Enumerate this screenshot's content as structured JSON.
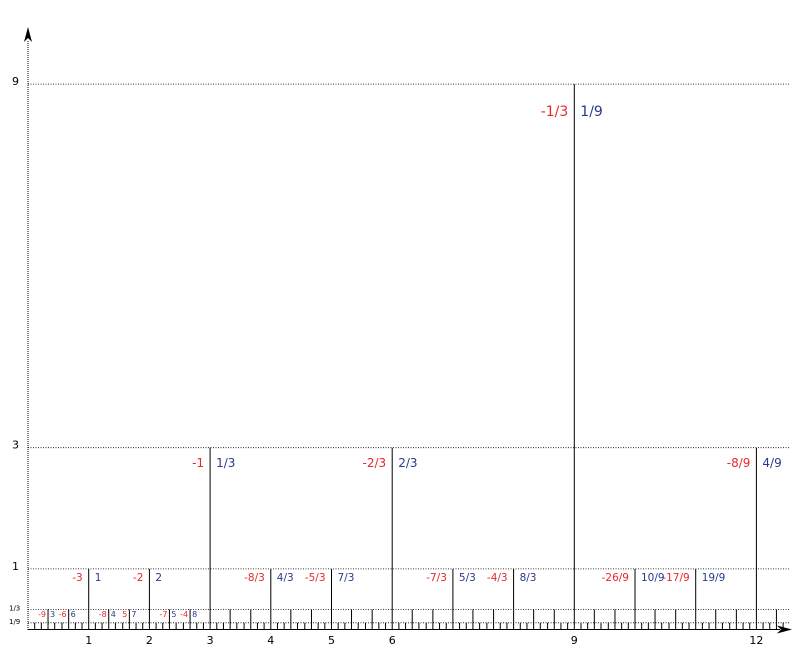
{
  "chart_data": {
    "type": "ruler",
    "x": [
      0.11,
      0.22,
      0.33,
      0.44,
      0.56,
      0.67,
      0.78,
      0.89,
      1,
      1.11,
      1.22,
      1.33,
      1.44,
      1.56,
      1.67,
      1.78,
      1.89,
      2,
      2.11,
      2.22,
      2.33,
      2.44,
      2.56,
      2.67,
      2.78,
      2.89,
      3,
      3.11,
      3.22,
      3.33,
      3.44,
      3.56,
      3.67,
      3.78,
      3.89,
      4,
      4.11,
      4.22,
      4.33,
      4.44,
      4.56,
      4.67,
      4.78,
      4.89,
      5,
      5.11,
      5.22,
      5.33,
      5.44,
      5.56,
      5.67,
      5.78,
      5.89,
      6,
      6.11,
      6.22,
      6.33,
      6.44,
      6.56,
      6.67,
      6.78,
      6.89,
      7,
      7.11,
      7.22,
      7.33,
      7.44,
      7.56,
      7.67,
      7.78,
      7.89,
      8,
      8.11,
      8.22,
      8.33,
      8.44,
      8.56,
      8.67,
      8.78,
      8.89,
      9,
      9.11,
      9.22,
      9.33,
      9.44,
      9.56,
      9.67,
      9.78,
      9.89,
      10,
      10.11,
      10.22,
      10.33,
      10.44,
      10.56,
      10.67,
      10.78,
      10.89,
      11,
      11.11,
      11.22,
      11.33,
      11.44,
      11.56,
      11.67,
      11.78,
      11.89,
      12,
      12.11,
      12.22,
      12.33,
      12.44
    ],
    "values": [
      0.11,
      0.11,
      0.33,
      0.11,
      0.11,
      0.33,
      0.11,
      0.11,
      1,
      0.11,
      0.11,
      0.33,
      0.11,
      0.11,
      0.33,
      0.11,
      0.11,
      1,
      0.11,
      0.11,
      0.33,
      0.11,
      0.11,
      0.33,
      0.11,
      0.11,
      3,
      0.11,
      0.11,
      0.33,
      0.11,
      0.11,
      0.33,
      0.11,
      0.11,
      1,
      0.11,
      0.11,
      0.33,
      0.11,
      0.11,
      0.33,
      0.11,
      0.11,
      1,
      0.11,
      0.11,
      0.33,
      0.11,
      0.11,
      0.33,
      0.11,
      0.11,
      3,
      0.11,
      0.11,
      0.33,
      0.11,
      0.11,
      0.33,
      0.11,
      0.11,
      1,
      0.11,
      0.11,
      0.33,
      0.11,
      0.11,
      0.33,
      0.11,
      0.11,
      1,
      0.11,
      0.11,
      0.33,
      0.11,
      0.11,
      0.33,
      0.11,
      0.11,
      9,
      0.11,
      0.11,
      0.33,
      0.11,
      0.11,
      0.33,
      0.11,
      0.11,
      1,
      0.11,
      0.11,
      0.33,
      0.11,
      0.11,
      0.33,
      0.11,
      0.11,
      1,
      0.11,
      0.11,
      0.33,
      0.11,
      0.11,
      0.33,
      0.11,
      0.11,
      3,
      0.11,
      0.11,
      0.33,
      0.11
    ],
    "color": "#000000",
    "labels": [
      {
        "x": 0.33,
        "left": "-9",
        "right": "3"
      },
      {
        "x": 0.67,
        "left": "-6",
        "right": "6"
      },
      {
        "x": 1.33,
        "left": "-8",
        "right": "4"
      },
      {
        "x": 1.67,
        "left": "5",
        "right": "7"
      },
      {
        "x": 2.33,
        "left": "-7",
        "right": "5"
      },
      {
        "x": 2.67,
        "left": "-4",
        "right": "8"
      },
      {
        "x": 1,
        "left": "-3",
        "right": "1"
      },
      {
        "x": 2,
        "left": "-2",
        "right": "2"
      },
      {
        "x": 3,
        "left": "-1",
        "right": "1/3"
      },
      {
        "x": 4,
        "left": "-8/3",
        "right": "4/3"
      },
      {
        "x": 5,
        "left": "-5/3",
        "right": "7/3"
      },
      {
        "x": 6,
        "left": "-2/3",
        "right": "2/3"
      },
      {
        "x": 7,
        "left": "-7/3",
        "right": "5/3"
      },
      {
        "x": 8,
        "left": "-4/3",
        "right": "8/3"
      },
      {
        "x": 9,
        "left": "-1/3",
        "right": "1/9"
      },
      {
        "x": 10,
        "left": "-26/9",
        "right": "10/9"
      },
      {
        "x": 11,
        "left": "-17/9",
        "right": "19/9"
      },
      {
        "x": 12,
        "left": "-8/9",
        "right": "4/9"
      }
    ],
    "left_color": "#e8282b",
    "right_color": "#2a3a8c",
    "xlim": [
      0,
      12.6
    ],
    "ylim": [
      0,
      9.8
    ],
    "xticks": [
      1,
      2,
      3,
      4,
      5,
      6,
      9,
      12
    ],
    "yticks": [
      {
        "value": 0.11,
        "label": "1/9"
      },
      {
        "value": 0.33,
        "label": "1/3"
      },
      1,
      3,
      9
    ],
    "grid": true
  }
}
